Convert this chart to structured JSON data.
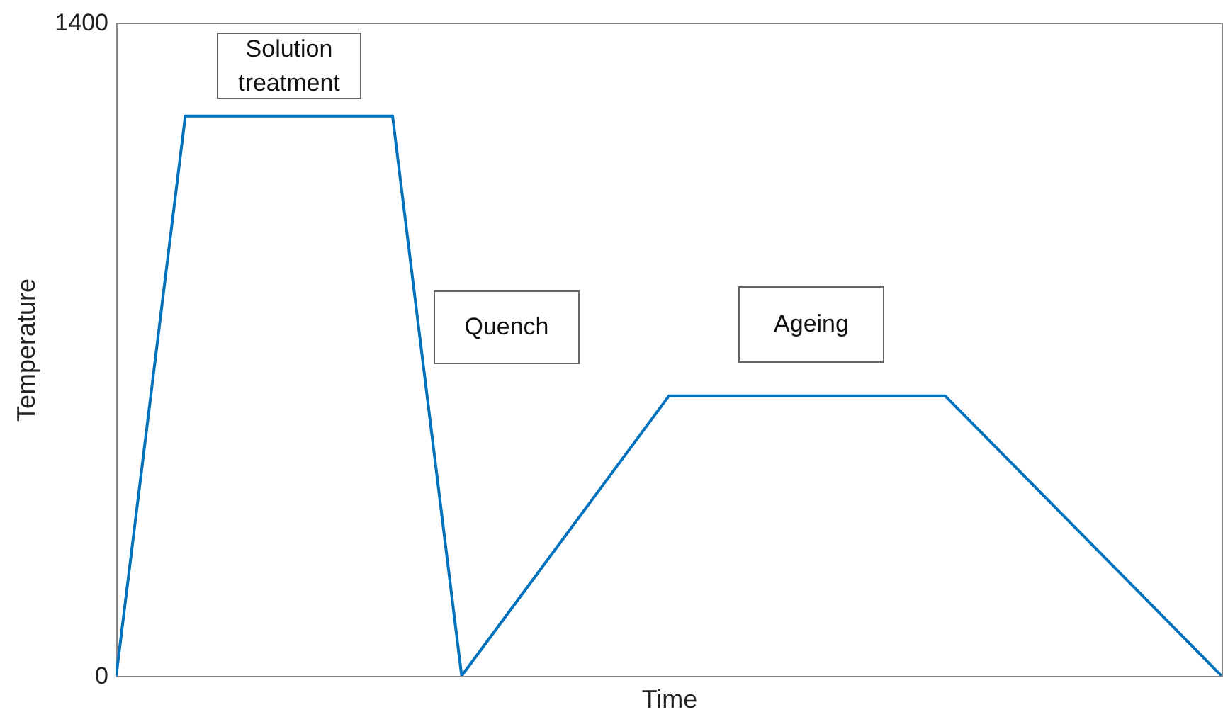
{
  "chart_data": {
    "type": "line",
    "xlabel": "Time",
    "ylabel": "Temperature",
    "categories": [
      null,
      null,
      null,
      null,
      null,
      null,
      null,
      null,
      null,
      null,
      null,
      null,
      null,
      null,
      null,
      null,
      null
    ],
    "series": [
      {
        "color": "#0072bd",
        "values": [
          0,
          1200,
          1200,
          1200,
          1200,
          0,
          200,
          400,
          600,
          600,
          600,
          600,
          600,
          450,
          300,
          150,
          0
        ]
      }
    ],
    "ylim": [
      0,
      1400
    ],
    "yticks": [
      0,
      1400
    ],
    "grid": false,
    "annotations": [
      "Solution treatment",
      "Quench",
      "Ageing"
    ]
  }
}
